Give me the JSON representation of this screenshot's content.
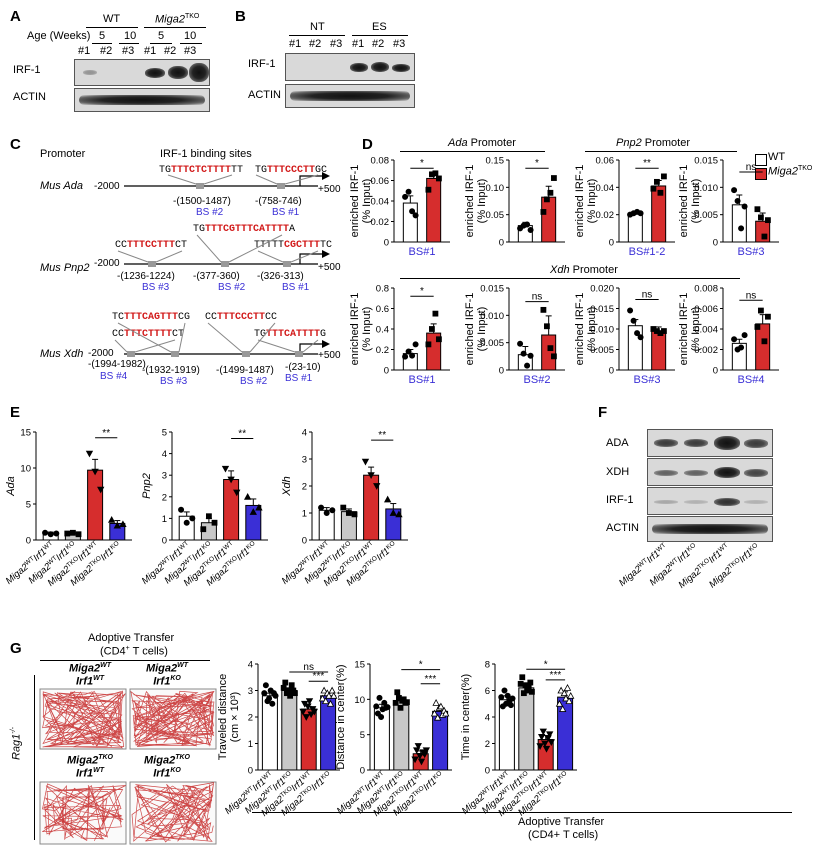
{
  "panels": {
    "A": "A",
    "B": "B",
    "C": "C",
    "D": "D",
    "E": "E",
    "F": "F",
    "G": "G"
  },
  "panelA": {
    "wt": "WT",
    "miga": "Miga2",
    "tko": "TKO",
    "age": "Age (Weeks)",
    "ages": [
      "5",
      "10",
      "5",
      "10"
    ],
    "lanes": [
      "#1",
      "#2",
      "#3",
      "#1",
      "#2",
      "#3"
    ],
    "rows": [
      "IRF-1",
      "ACTIN"
    ]
  },
  "panelB": {
    "nt": "NT",
    "es": "ES",
    "lanes": [
      "#1",
      "#2",
      "#3",
      "#1",
      "#2",
      "#3"
    ],
    "rows": [
      "IRF-1",
      "ACTIN"
    ]
  },
  "panelC": {
    "promoter": "Promoter",
    "sites_title": "IRF-1 binding sites",
    "ada": {
      "name": "Mus Ada",
      "seq1_pre": "TG",
      "seq1_red": "TTTCTCTTTT",
      "seq1_post": "TT",
      "seq2_pre": "TG",
      "seq2_red": "TTTCCCTT",
      "seq2_post": "GC",
      "start": "-2000",
      "end": "+500",
      "pos": [
        "-(1500-1487)",
        "-(758-746)"
      ],
      "bs": [
        "BS #2",
        "BS #1"
      ]
    },
    "pnp": {
      "name": "Mus Pnp2",
      "seq_top_pre": "TG",
      "seq_top_red": "TTTCGTTTCATTTT",
      "seq_top_post": "A",
      "seq1_pre": "CC",
      "seq1_red": "TTTCCTTT",
      "seq1_post": "CT",
      "seq2_pre": "TTTTT",
      "seq2_red": "CGCTTT",
      "seq2_post": "TC",
      "start": "-2000",
      "end": "+500",
      "pos": [
        "-(1236-1224)",
        "-(377-360)",
        "-(326-313)"
      ],
      "bs": [
        "BS #3",
        "BS #2",
        "BS #1"
      ]
    },
    "xdh": {
      "name": "Mus Xdh",
      "seq_top1_pre": "TC",
      "seq_top1_red": "TTTCAGTTT",
      "seq_top1_post": "CG",
      "seq_top2_pre": "CC",
      "seq_top2_red": "TTTCCCTT",
      "seq_top2_post": "CC",
      "seq1_pre": "CC",
      "seq1_red": "TTTCTTTT",
      "seq1_post": "CT",
      "seq2_pre": "TG",
      "seq2_red": "TTTCATTTT",
      "seq2_post": "G",
      "start": "-2000",
      "end": "+500",
      "pos": [
        "-(1994-1982)",
        "-(1932-1919)",
        "-(1499-1487)",
        "-(23-10)"
      ],
      "bs": [
        "BS #4",
        "BS #3",
        "BS #2",
        "BS #1"
      ]
    }
  },
  "panelD": {
    "ada_promoter": "Ada",
    "pnp_promoter": "Pnp2",
    "xdh_promoter": "Xdh",
    "promoter_word": " Promoter",
    "ylabel1": "enriched IRF-1",
    "ylabel2": "(% Input)",
    "legend": {
      "wt": "WT",
      "tko": "TKO",
      "miga": "Miga2"
    },
    "colors": {
      "wt": "#ffffff",
      "tko": "#d62d2d",
      "blue": "#3a2fd6"
    }
  },
  "panelE": {
    "genes": [
      "Ada",
      "Pnp2",
      "Xdh"
    ],
    "sig": "**"
  },
  "panelF": {
    "rows": [
      "ADA",
      "XDH",
      "IRF-1",
      "ACTIN"
    ]
  },
  "panelG": {
    "title1": "Adoptive Transfer",
    "title2": "(CD4",
    "title2_sup": "+",
    "title2_end": " T cells)",
    "rag": "Rag1",
    "rag_sup": "-/-",
    "cond": [
      {
        "l1": "Miga2",
        "l1s": "WT",
        "l2": "Irf1",
        "l2s": "WT"
      },
      {
        "l1": "Miga2",
        "l1s": "WT",
        "l2": "Irf1",
        "l2s": "KO"
      },
      {
        "l1": "Miga2",
        "l1s": "TKO",
        "l2": "Irf1",
        "l2s": "WT"
      },
      {
        "l1": "Miga2",
        "l1s": "TKO",
        "l2": "Irf1",
        "l2s": "KO"
      }
    ],
    "bottom1": "Adoptive Transfer",
    "bottom2": "(CD4+ T cells)"
  },
  "group_labels": [
    {
      "a": "Miga2",
      "as": "WT",
      "b": "Irf1",
      "bs": "WT"
    },
    {
      "a": "Miga2",
      "as": "WT",
      "b": "Irf1",
      "bs": "KO"
    },
    {
      "a": "Miga2",
      "as": "TKO",
      "b": "Irf1",
      "bs": "WT"
    },
    {
      "a": "Miga2",
      "as": "TKO",
      "b": "Irf1",
      "bs": "KO"
    }
  ],
  "chart_data": [
    {
      "id": "D-ada-bs1",
      "type": "bar",
      "xlabel": "BS#1",
      "ylabel": "enriched IRF-1 (% Input)",
      "ylim": [
        0,
        0.08
      ],
      "ticks": [
        0,
        0.02,
        0.04,
        0.06,
        0.08
      ],
      "categories": [
        "WT",
        "Miga2 TKO"
      ],
      "values": [
        0.038,
        0.062
      ],
      "errors": [
        0.007,
        0.006
      ],
      "points": [
        [
          0.044,
          0.049,
          0.03,
          0.026
        ],
        [
          0.051,
          0.066,
          0.067,
          0.062
        ]
      ],
      "sig": "*"
    },
    {
      "id": "D-ada-bs2",
      "type": "bar",
      "xlabel": "",
      "ylabel": "enriched IRF-1 (% Input)",
      "ylim": [
        0,
        0.15
      ],
      "ticks": [
        0,
        0.05,
        0.1,
        0.15
      ],
      "categories": [
        "WT",
        "Miga2 TKO"
      ],
      "values": [
        0.03,
        0.082
      ],
      "errors": [
        0.006,
        0.02
      ],
      "points": [
        [
          0.025,
          0.03,
          0.032,
          0.022
        ],
        [
          0.055,
          0.078,
          0.09,
          0.117
        ]
      ],
      "sig": "*"
    },
    {
      "id": "D-pnp-bs12",
      "type": "bar",
      "xlabel": "BS#1-2",
      "ylabel": "enriched IRF-1 (% Input)",
      "ylim": [
        0,
        0.06
      ],
      "ticks": [
        0,
        0.02,
        0.04,
        0.06
      ],
      "categories": [
        "WT",
        "Miga2 TKO"
      ],
      "values": [
        0.021,
        0.041
      ],
      "errors": [
        0.001,
        0.004
      ],
      "points": [
        [
          0.02,
          0.021,
          0.022,
          0.021
        ],
        [
          0.039,
          0.044,
          0.036,
          0.048
        ]
      ],
      "sig": "**"
    },
    {
      "id": "D-pnp-bs3",
      "type": "bar",
      "xlabel": "BS#3",
      "ylabel": "enriched IRF-1 (% Input)",
      "ylim": [
        0,
        0.015
      ],
      "ticks": [
        0,
        0.005,
        0.01,
        0.015
      ],
      "categories": [
        "WT",
        "Miga2 TKO"
      ],
      "values": [
        0.0068,
        0.0038
      ],
      "errors": [
        0.0018,
        0.0015
      ],
      "points": [
        [
          0.0095,
          0.0075,
          0.0025,
          0.0065
        ],
        [
          0.006,
          0.0045,
          0.001,
          0.004
        ]
      ],
      "sig": "ns"
    },
    {
      "id": "D-xdh-bs1",
      "type": "bar",
      "xlabel": "BS#1",
      "ylabel": "enriched IRF-1 (% Input)",
      "ylim": [
        0,
        0.8
      ],
      "ticks": [
        0,
        0.2,
        0.4,
        0.6,
        0.8
      ],
      "categories": [
        "WT",
        "Miga2 TKO"
      ],
      "values": [
        0.16,
        0.36
      ],
      "errors": [
        0.04,
        0.09
      ],
      "points": [
        [
          0.13,
          0.18,
          0.14,
          0.25
        ],
        [
          0.25,
          0.4,
          0.55,
          0.3
        ]
      ],
      "sig": "*"
    },
    {
      "id": "D-xdh-bs2",
      "type": "bar",
      "xlabel": "BS#2",
      "ylabel": "enriched IRF-1 (% Input)",
      "ylim": [
        0,
        0.015
      ],
      "ticks": [
        0,
        0.005,
        0.01,
        0.015
      ],
      "categories": [
        "WT",
        "Miga2 TKO"
      ],
      "values": [
        0.0028,
        0.0064
      ],
      "errors": [
        0.0015,
        0.0035
      ],
      "points": [
        [
          0.0048,
          0.003,
          0.0008,
          0.0026
        ],
        [
          0.011,
          0.008,
          0.004,
          0.0025
        ]
      ],
      "sig": "ns"
    },
    {
      "id": "D-xdh-bs3",
      "type": "bar",
      "xlabel": "BS#3",
      "ylabel": "enriched IRF-1 (% Input)",
      "ylim": [
        0,
        0.02
      ],
      "ticks": [
        0,
        0.005,
        0.01,
        0.015,
        0.02
      ],
      "categories": [
        "WT",
        "Miga2 TKO"
      ],
      "values": [
        0.0108,
        0.0095
      ],
      "errors": [
        0.0015,
        0.001
      ],
      "points": [
        [
          0.0145,
          0.012,
          0.009,
          0.008
        ],
        [
          0.01,
          0.0095,
          0.009,
          0.0095
        ]
      ],
      "sig": "ns"
    },
    {
      "id": "D-xdh-bs4",
      "type": "bar",
      "xlabel": "BS#4",
      "ylabel": "enriched IRF-1 (% Input)",
      "ylim": [
        0,
        0.008
      ],
      "ticks": [
        0,
        0.002,
        0.004,
        0.006,
        0.008
      ],
      "categories": [
        "WT",
        "Miga2 TKO"
      ],
      "values": [
        0.0026,
        0.0045
      ],
      "errors": [
        0.0004,
        0.0009
      ],
      "points": [
        [
          0.003,
          0.002,
          0.0022,
          0.0034
        ],
        [
          0.0042,
          0.0058,
          0.0028,
          0.0052
        ]
      ],
      "sig": "ns"
    },
    {
      "id": "E-ada",
      "type": "bar",
      "ylabel": "Ada",
      "ylim": [
        0,
        15
      ],
      "ticks": [
        0,
        5,
        10,
        15
      ],
      "values": [
        0.9,
        0.9,
        9.7,
        2.3
      ],
      "errors": [
        0.2,
        0.2,
        1.5,
        0.4
      ],
      "points": [
        [
          1.0,
          0.8,
          0.9
        ],
        [
          0.9,
          1.0,
          0.8
        ],
        [
          12.0,
          9.5,
          7.0
        ],
        [
          2.8,
          2.0,
          2.2
        ]
      ],
      "sig": "**"
    },
    {
      "id": "E-pnp2",
      "type": "bar",
      "ylabel": "Pnp2",
      "ylim": [
        0,
        5
      ],
      "ticks": [
        0,
        1,
        2,
        3,
        4,
        5
      ],
      "values": [
        1.1,
        0.8,
        2.8,
        1.6
      ],
      "errors": [
        0.2,
        0.2,
        0.4,
        0.3
      ],
      "points": [
        [
          1.4,
          0.8,
          1.0
        ],
        [
          0.5,
          1.1,
          0.8
        ],
        [
          3.3,
          2.8,
          2.2
        ],
        [
          2.0,
          1.3,
          1.5
        ]
      ],
      "sig": "**"
    },
    {
      "id": "E-xdh",
      "type": "bar",
      "ylabel": "Xdh",
      "ylim": [
        0,
        4
      ],
      "ticks": [
        0,
        1,
        2,
        3,
        4
      ],
      "values": [
        1.1,
        1.05,
        2.4,
        1.15
      ],
      "errors": [
        0.1,
        0.1,
        0.3,
        0.2
      ],
      "points": [
        [
          1.2,
          1.0,
          1.1
        ],
        [
          1.2,
          1.0,
          0.95
        ],
        [
          2.9,
          2.4,
          2.0
        ],
        [
          1.5,
          1.0,
          0.95
        ]
      ],
      "sig": "**"
    },
    {
      "id": "G-distance",
      "type": "bar",
      "ylabel": "Traveled distance (cm × 10³)",
      "ylim": [
        0,
        4
      ],
      "ticks": [
        0,
        1,
        2,
        3,
        4
      ],
      "values": [
        2.8,
        3.0,
        2.3,
        2.8
      ],
      "errors": [
        0.1,
        0.1,
        0.1,
        0.1
      ],
      "points": [
        [
          2.9,
          3.2,
          2.6,
          2.7,
          3.0,
          2.5,
          2.9,
          2.8
        ],
        [
          3.1,
          3.3,
          2.9,
          3.0,
          2.8,
          3.2,
          3.0,
          2.9
        ],
        [
          2.2,
          2.5,
          2.0,
          2.4,
          2.6,
          2.1,
          2.3,
          2.2
        ],
        [
          2.7,
          3.0,
          2.6,
          2.9,
          2.8,
          2.5,
          3.0,
          2.8
        ]
      ],
      "sig": [
        "ns",
        "***"
      ]
    },
    {
      "id": "G-center-distance",
      "type": "bar",
      "ylabel": "Distance in center(%)",
      "ylim": [
        0,
        15
      ],
      "ticks": [
        0,
        5,
        10,
        15
      ],
      "values": [
        8.8,
        9.8,
        2.3,
        8.3
      ],
      "errors": [
        0.5,
        0.5,
        0.4,
        0.5
      ],
      "points": [
        [
          9.0,
          8.0,
          10.2,
          7.5,
          8.6,
          9.5,
          8.8,
          8.9
        ],
        [
          9.5,
          11.0,
          10.2,
          8.8,
          9.8,
          10.0,
          9.5,
          9.6
        ],
        [
          1.5,
          2.8,
          3.4,
          2.0,
          1.2,
          2.5,
          2.2,
          2.8
        ],
        [
          8.0,
          9.5,
          7.4,
          8.8,
          9.0,
          7.8,
          8.4,
          8.0
        ]
      ],
      "sig": [
        "*",
        "***"
      ]
    },
    {
      "id": "G-center-time",
      "type": "bar",
      "ylabel": "Time in center(%)",
      "ylim": [
        0,
        8
      ],
      "ticks": [
        0,
        2,
        4,
        6,
        8
      ],
      "values": [
        5.3,
        6.2,
        2.3,
        5.5
      ],
      "errors": [
        0.3,
        0.3,
        0.3,
        0.4
      ],
      "points": [
        [
          5.5,
          4.8,
          6.0,
          5.0,
          5.6,
          5.2,
          4.9,
          5.4
        ],
        [
          6.5,
          7.0,
          5.8,
          6.4,
          6.0,
          6.2,
          6.6,
          5.9
        ],
        [
          1.8,
          2.5,
          2.9,
          2.0,
          1.6,
          2.4,
          2.7,
          2.1
        ],
        [
          5.0,
          6.0,
          4.6,
          5.8,
          5.4,
          6.2,
          5.2,
          5.6
        ]
      ],
      "sig": [
        "*",
        "***"
      ]
    }
  ]
}
